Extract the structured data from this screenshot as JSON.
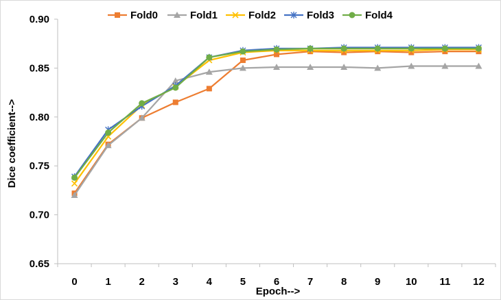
{
  "chart_data": {
    "type": "line",
    "title": "",
    "xlabel": "Epoch-->",
    "ylabel": "Dice coefficient-->",
    "x": [
      0,
      1,
      2,
      3,
      4,
      5,
      6,
      7,
      8,
      9,
      10,
      11,
      12
    ],
    "ylim": [
      0.65,
      0.9
    ],
    "yticks": [
      "0.65",
      "0.70",
      "0.75",
      "0.80",
      "0.85",
      "0.90"
    ],
    "legend_position": "top",
    "grid": false,
    "series": [
      {
        "name": "Fold0",
        "color": "#ED7D31",
        "marker": "square",
        "values": [
          0.722,
          0.772,
          0.799,
          0.815,
          0.829,
          0.858,
          0.864,
          0.867,
          0.866,
          0.867,
          0.866,
          0.867,
          0.867
        ]
      },
      {
        "name": "Fold1",
        "color": "#A5A5A5",
        "marker": "triangle",
        "values": [
          0.72,
          0.771,
          0.799,
          0.837,
          0.846,
          0.85,
          0.851,
          0.851,
          0.851,
          0.85,
          0.852,
          0.852,
          0.852
        ]
      },
      {
        "name": "Fold2",
        "color": "#FFC000",
        "marker": "x",
        "values": [
          0.732,
          0.78,
          0.812,
          0.831,
          0.858,
          0.866,
          0.868,
          0.868,
          0.868,
          0.868,
          0.868,
          0.869,
          0.869
        ]
      },
      {
        "name": "Fold3",
        "color": "#4472C4",
        "marker": "star",
        "values": [
          0.739,
          0.787,
          0.811,
          0.832,
          0.861,
          0.868,
          0.87,
          0.87,
          0.871,
          0.871,
          0.871,
          0.871,
          0.871
        ]
      },
      {
        "name": "Fold4",
        "color": "#70AD47",
        "marker": "circle",
        "values": [
          0.738,
          0.784,
          0.814,
          0.83,
          0.861,
          0.867,
          0.869,
          0.87,
          0.87,
          0.87,
          0.87,
          0.87,
          0.87
        ]
      }
    ]
  }
}
